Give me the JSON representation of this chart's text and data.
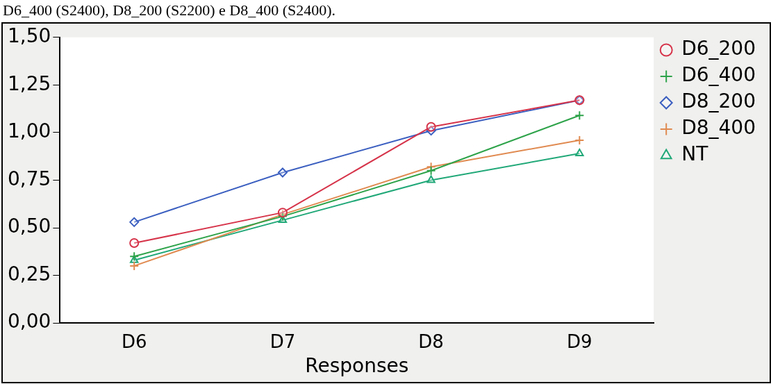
{
  "chart_data": {
    "type": "line",
    "annotations": [
      "D6_400 (S2400), D8_200 (S2200) e D8_400 (S2400)."
    ],
    "xlabel": "Responses",
    "categories": [
      "D6",
      "D7",
      "D8",
      "D9"
    ],
    "series": [
      {
        "name": "D6_200",
        "color": "#d6344a",
        "marker": "circle",
        "values": [
          0.42,
          0.58,
          1.03,
          1.17
        ]
      },
      {
        "name": "D6_400",
        "color": "#2ea34a",
        "marker": "cross",
        "values": [
          0.35,
          0.56,
          0.8,
          1.09
        ]
      },
      {
        "name": "D8_200",
        "color": "#3b5fc0",
        "marker": "diamond",
        "values": [
          0.53,
          0.79,
          1.01,
          1.17
        ]
      },
      {
        "name": "D8_400",
        "color": "#e08a50",
        "marker": "cross",
        "values": [
          0.3,
          0.57,
          0.82,
          0.96
        ]
      },
      {
        "name": "NT",
        "color": "#20a878",
        "marker": "triangle",
        "values": [
          0.33,
          0.54,
          0.75,
          0.89
        ]
      }
    ],
    "ylim": [
      0,
      1.5
    ],
    "yticks": [
      {
        "value": 0,
        "label": "0,00"
      },
      {
        "value": 0.25,
        "label": "0,25"
      },
      {
        "value": 0.5,
        "label": "0,50"
      },
      {
        "value": 0.75,
        "label": "0,75"
      },
      {
        "value": 1,
        "label": "1,00"
      },
      {
        "value": 1.25,
        "label": "1,25"
      },
      {
        "value": 1.5,
        "label": "1,50"
      }
    ],
    "grid": false,
    "legend": "right"
  }
}
